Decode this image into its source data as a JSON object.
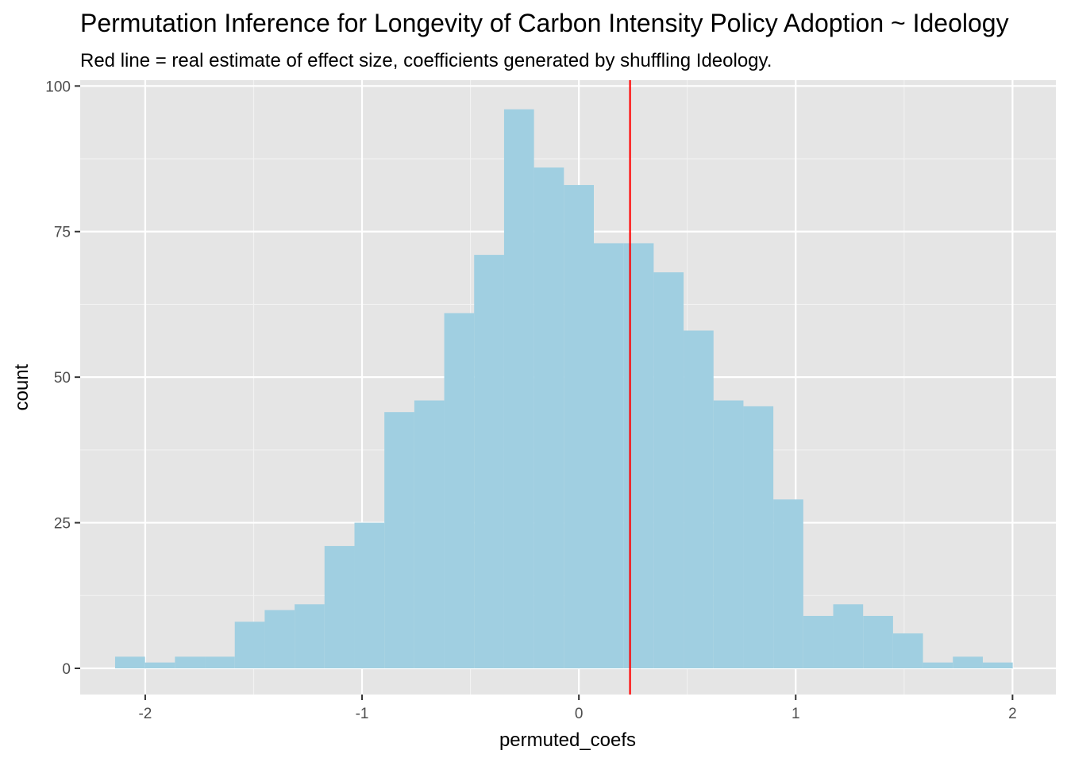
{
  "chart_data": {
    "type": "bar",
    "title": "Permutation Inference for Longevity of Carbon Intensity Policy Adoption ~ Ideology",
    "subtitle": "Red line = real estimate of effect size, coefficients generated by shuffling Ideology.",
    "xlabel": "permuted_coefs",
    "ylabel": "count",
    "xlim": [
      -2.3,
      2.2
    ],
    "ylim": [
      -4.5,
      101
    ],
    "x_ticks": [
      -2,
      -1,
      0,
      1,
      2
    ],
    "x_tick_labels": [
      "-2",
      "-1",
      "0",
      "1",
      "2"
    ],
    "y_ticks": [
      0,
      25,
      50,
      75,
      100
    ],
    "y_tick_labels": [
      "0",
      "25",
      "50",
      "75",
      "100"
    ],
    "bin_width": 0.138,
    "bin_centers": [
      -2.07,
      -1.932,
      -1.794,
      -1.656,
      -1.518,
      -1.38,
      -1.242,
      -1.104,
      -0.966,
      -0.828,
      -0.69,
      -0.552,
      -0.414,
      -0.276,
      -0.138,
      0.0,
      0.138,
      0.276,
      0.414,
      0.552,
      0.69,
      0.828,
      0.966,
      1.104,
      1.242,
      1.38,
      1.518,
      1.656,
      1.794,
      1.932
    ],
    "values": [
      2,
      1,
      2,
      2,
      8,
      10,
      11,
      21,
      25,
      44,
      46,
      61,
      71,
      96,
      86,
      83,
      73,
      73,
      68,
      58,
      46,
      45,
      29,
      9,
      11,
      9,
      6,
      1,
      2,
      1
    ],
    "bar_color": "#a0cfe1",
    "panel_background": "#e5e5e5",
    "grid": true,
    "reference_line": {
      "x": 0.236,
      "color": "#ff0000"
    }
  }
}
